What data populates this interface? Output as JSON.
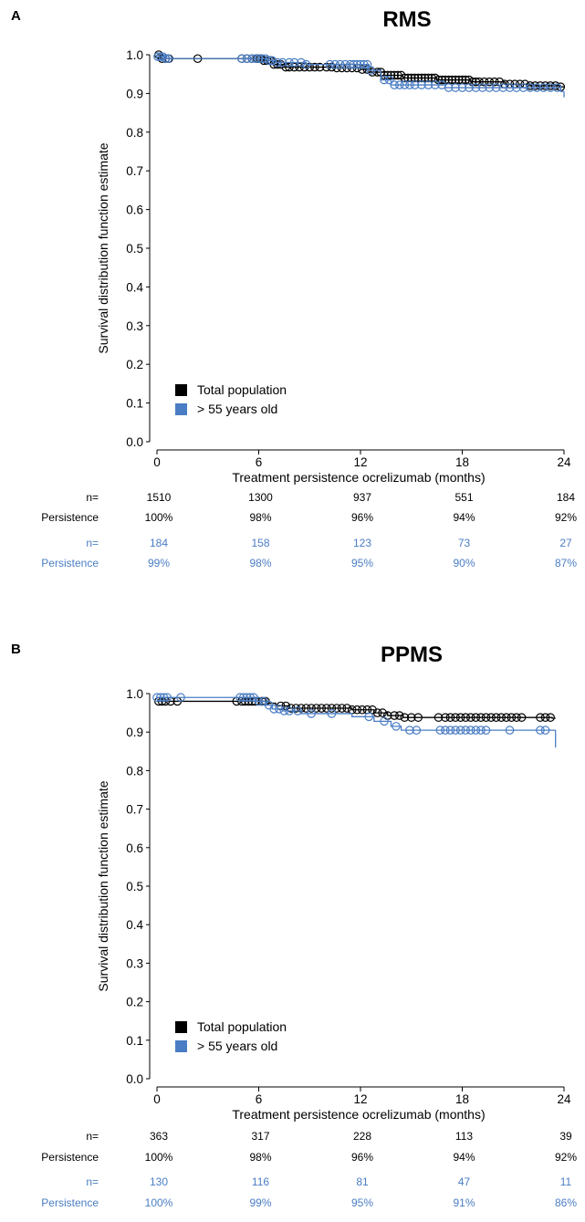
{
  "chart_data": [
    {
      "type": "line",
      "subtype": "kaplan-meier",
      "panel_label": "A",
      "title": "RMS",
      "xlabel": "Treatment persistence ocrelizumab (months)",
      "ylabel": "Survival distribution function estimate",
      "xlim": [
        0,
        24
      ],
      "ylim": [
        0,
        1.0
      ],
      "xticks": [
        "0",
        "6",
        "12",
        "18",
        "24"
      ],
      "yticks": [
        "0.0",
        "0.1",
        "0.2",
        "0.3",
        "0.4",
        "0.5",
        "0.6",
        "0.7",
        "0.8",
        "0.9",
        "1.0"
      ],
      "legend": {
        "position": "bottom-left"
      },
      "series": [
        {
          "name": "Total population",
          "color": "#000000",
          "steps": [
            [
              0,
              1.0
            ],
            [
              0.2,
              0.99
            ],
            [
              6.2,
              0.985
            ],
            [
              6.8,
              0.975
            ],
            [
              7.5,
              0.968
            ],
            [
              10.5,
              0.966
            ],
            [
              12.0,
              0.962
            ],
            [
              12.6,
              0.955
            ],
            [
              13.4,
              0.947
            ],
            [
              14.5,
              0.94
            ],
            [
              16.5,
              0.935
            ],
            [
              18.5,
              0.93
            ],
            [
              20.5,
              0.924
            ],
            [
              22.0,
              0.92
            ],
            [
              23.8,
              0.917
            ],
            [
              24,
              0.917
            ]
          ],
          "censored": [
            0.1,
            0.3,
            0.5,
            0.7,
            2.4,
            5.0,
            5.3,
            5.6,
            5.9,
            6.1,
            6.3,
            6.5,
            6.7,
            6.9,
            7.1,
            7.3,
            7.6,
            7.8,
            8.1,
            8.4,
            8.7,
            9.0,
            9.3,
            9.6,
            10.0,
            10.3,
            10.6,
            10.9,
            11.2,
            11.5,
            11.8,
            12.1,
            12.4,
            12.7,
            13.0,
            13.2,
            13.4,
            13.6,
            13.8,
            14.0,
            14.2,
            14.4,
            14.6,
            14.8,
            15.0,
            15.2,
            15.4,
            15.6,
            15.8,
            16.0,
            16.2,
            16.4,
            16.6,
            16.8,
            17.0,
            17.2,
            17.4,
            17.6,
            17.8,
            18.0,
            18.2,
            18.4,
            18.6,
            18.8,
            19.0,
            19.3,
            19.6,
            19.9,
            20.2,
            20.5,
            20.8,
            21.1,
            21.4,
            21.7,
            22.0,
            22.3,
            22.6,
            22.9,
            23.2,
            23.5,
            23.8
          ]
        },
        {
          "name": "> 55 years old",
          "color": "#4a7dc4",
          "steps": [
            [
              0,
              0.995
            ],
            [
              0.5,
              0.99
            ],
            [
              6.5,
              0.985
            ],
            [
              7.0,
              0.98
            ],
            [
              8.8,
              0.975
            ],
            [
              12.5,
              0.96
            ],
            [
              13.2,
              0.935
            ],
            [
              13.8,
              0.922
            ],
            [
              17.0,
              0.915
            ],
            [
              23.8,
              0.905
            ],
            [
              24,
              0.905
            ]
          ],
          "censored": [
            0.05,
            0.2,
            0.35,
            0.5,
            0.65,
            5.0,
            5.3,
            5.6,
            5.8,
            6.0,
            6.2,
            6.4,
            6.6,
            6.8,
            7.1,
            7.4,
            7.8,
            8.1,
            8.5,
            8.8,
            10.2,
            10.5,
            10.8,
            11.1,
            11.4,
            11.6,
            11.8,
            12.0,
            12.2,
            12.4,
            12.6,
            13.4,
            13.7,
            14.0,
            14.3,
            14.6,
            14.9,
            15.2,
            15.6,
            16.0,
            16.4,
            16.8,
            17.2,
            17.6,
            18.0,
            18.4,
            18.8,
            19.2,
            19.6,
            20.0,
            20.4,
            20.8,
            21.2,
            21.6,
            22.0,
            22.4,
            22.8,
            23.2,
            23.6
          ],
          "end_drop": [
            24,
            0.89
          ]
        }
      ],
      "risk_table": {
        "rows": [
          {
            "label": "n=",
            "color": "#000000",
            "values": [
              "1510",
              "1300",
              "937",
              "551",
              "184"
            ]
          },
          {
            "label": "Persistence",
            "color": "#000000",
            "values": [
              "100%",
              "98%",
              "96%",
              "94%",
              "92%"
            ]
          },
          {
            "label": "n=",
            "color": "#4a7dc4",
            "values": [
              "184",
              "158",
              "123",
              "73",
              "27"
            ]
          },
          {
            "label": "Persistence",
            "color": "#4a7dc4",
            "values": [
              "99%",
              "98%",
              "95%",
              "90%",
              "87%"
            ]
          }
        ]
      }
    },
    {
      "type": "line",
      "subtype": "kaplan-meier",
      "panel_label": "B",
      "title": "PPMS",
      "xlabel": "Treatment persistence ocrelizumab (months)",
      "ylabel": "Survival distribution function estimate",
      "xlim": [
        0,
        24
      ],
      "ylim": [
        0,
        1.0
      ],
      "xticks": [
        "0",
        "6",
        "12",
        "18",
        "24"
      ],
      "yticks": [
        "0.0",
        "0.1",
        "0.2",
        "0.3",
        "0.4",
        "0.5",
        "0.6",
        "0.7",
        "0.8",
        "0.9",
        "1.0"
      ],
      "legend": {
        "position": "bottom-left"
      },
      "series": [
        {
          "name": "Total population",
          "color": "#000000",
          "steps": [
            [
              0,
              0.98
            ],
            [
              6.5,
              0.975
            ],
            [
              7.0,
              0.968
            ],
            [
              7.8,
              0.962
            ],
            [
              11.5,
              0.958
            ],
            [
              12.8,
              0.95
            ],
            [
              13.6,
              0.943
            ],
            [
              14.5,
              0.938
            ],
            [
              23.3,
              0.936
            ],
            [
              23.5,
              0.936
            ]
          ],
          "censored": [
            0.1,
            0.3,
            0.5,
            0.8,
            1.2,
            4.7,
            5.0,
            5.2,
            5.4,
            5.6,
            5.8,
            6.0,
            6.2,
            6.4,
            7.3,
            7.6,
            7.9,
            8.2,
            8.5,
            8.8,
            9.1,
            9.4,
            9.7,
            10.0,
            10.3,
            10.6,
            10.9,
            11.2,
            11.5,
            11.8,
            12.1,
            12.4,
            12.7,
            13.0,
            13.3,
            13.6,
            14.0,
            14.3,
            14.6,
            15.0,
            15.4,
            16.6,
            17.0,
            17.3,
            17.6,
            17.9,
            18.2,
            18.5,
            18.8,
            19.1,
            19.4,
            19.7,
            20.0,
            20.3,
            20.6,
            20.9,
            21.2,
            21.5,
            22.6,
            22.9,
            23.2
          ]
        },
        {
          "name": "> 55 years old",
          "color": "#4a7dc4",
          "steps": [
            [
              0,
              0.99
            ],
            [
              5.8,
              0.98
            ],
            [
              6.4,
              0.97
            ],
            [
              6.8,
              0.96
            ],
            [
              7.4,
              0.955
            ],
            [
              8.5,
              0.948
            ],
            [
              11.5,
              0.94
            ],
            [
              12.8,
              0.928
            ],
            [
              13.8,
              0.915
            ],
            [
              14.4,
              0.905
            ],
            [
              22.5,
              0.905
            ],
            [
              23.5,
              0.905
            ]
          ],
          "censored": [
            0.0,
            0.2,
            0.4,
            0.6,
            1.4,
            4.9,
            5.1,
            5.3,
            5.5,
            5.7,
            6.0,
            6.3,
            6.6,
            6.9,
            7.2,
            7.5,
            7.8,
            8.3,
            9.1,
            10.3,
            12.5,
            13.4,
            14.1,
            14.9,
            15.3,
            16.7,
            17.0,
            17.3,
            17.6,
            17.9,
            18.2,
            18.5,
            18.8,
            19.1,
            19.4,
            20.8,
            22.6,
            22.9
          ],
          "end_drop": [
            23.5,
            0.86
          ]
        }
      ],
      "risk_table": {
        "rows": [
          {
            "label": "n=",
            "color": "#000000",
            "values": [
              "363",
              "317",
              "228",
              "113",
              "39"
            ]
          },
          {
            "label": "Persistence",
            "color": "#000000",
            "values": [
              "100%",
              "98%",
              "96%",
              "94%",
              "92%"
            ]
          },
          {
            "label": "n=",
            "color": "#4a7dc4",
            "values": [
              "130",
              "116",
              "81",
              "47",
              "11"
            ]
          },
          {
            "label": "Persistence",
            "color": "#4a7dc4",
            "values": [
              "100%",
              "99%",
              "95%",
              "91%",
              "86%"
            ]
          }
        ]
      }
    }
  ]
}
